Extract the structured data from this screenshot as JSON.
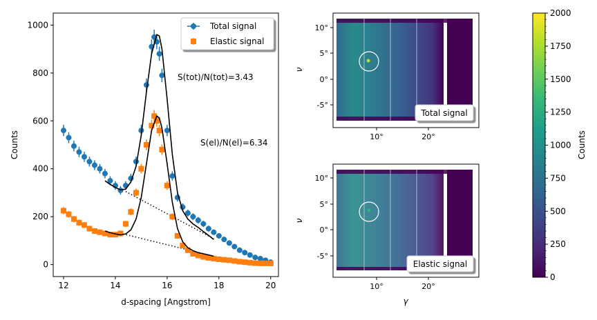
{
  "chart_data": [
    {
      "type": "scatter",
      "xlabel": "d-spacing [Angstrom]",
      "ylabel": "Counts",
      "xlim": [
        11.6,
        20.3
      ],
      "ylim": [
        -50,
        1050
      ],
      "xticks": [
        12,
        14,
        16,
        18,
        20
      ],
      "yticks": [
        0,
        200,
        400,
        600,
        800,
        1000
      ],
      "legend": {
        "position": "top-right",
        "entries": [
          "Total signal",
          "Elastic signal"
        ]
      },
      "annotations": [
        {
          "text": "S(tot)/N(tot)=3.43",
          "x": 17.8,
          "y": 780
        },
        {
          "text": "S(el)/N(el)=6.34",
          "x": 18.6,
          "y": 505
        }
      ],
      "series": [
        {
          "name": "Total signal",
          "color": "#1f77b4",
          "marker": "circle",
          "x": [
            12.0,
            12.2,
            12.4,
            12.6,
            12.8,
            13.0,
            13.2,
            13.4,
            13.6,
            13.8,
            14.0,
            14.2,
            14.4,
            14.6,
            14.8,
            15.0,
            15.2,
            15.4,
            15.5,
            15.6,
            15.7,
            15.8,
            16.0,
            16.2,
            16.4,
            16.6,
            16.8,
            17.0,
            17.2,
            17.4,
            17.6,
            17.8,
            18.0,
            18.2,
            18.4,
            18.6,
            18.8,
            19.0,
            19.2,
            19.4,
            19.6,
            19.8,
            20.0
          ],
          "y": [
            560,
            530,
            495,
            470,
            450,
            430,
            415,
            400,
            380,
            350,
            330,
            310,
            330,
            360,
            430,
            560,
            750,
            910,
            950,
            930,
            880,
            790,
            560,
            370,
            280,
            240,
            215,
            200,
            185,
            170,
            150,
            135,
            120,
            105,
            90,
            75,
            60,
            50,
            40,
            30,
            25,
            18,
            10
          ]
        },
        {
          "name": "Elastic signal",
          "color": "#ff7f0e",
          "marker": "square",
          "x": [
            12.0,
            12.2,
            12.4,
            12.6,
            12.8,
            13.0,
            13.2,
            13.4,
            13.6,
            13.8,
            14.0,
            14.2,
            14.4,
            14.6,
            14.8,
            15.0,
            15.2,
            15.4,
            15.5,
            15.6,
            15.7,
            15.8,
            16.0,
            16.2,
            16.4,
            16.6,
            16.8,
            17.0,
            17.2,
            17.4,
            17.6,
            17.8,
            18.0,
            18.2,
            18.4,
            18.6,
            18.8,
            19.0,
            19.2,
            19.4,
            19.6,
            19.8,
            20.0
          ],
          "y": [
            225,
            210,
            190,
            175,
            165,
            150,
            140,
            135,
            130,
            125,
            125,
            130,
            170,
            220,
            300,
            400,
            500,
            580,
            620,
            600,
            560,
            480,
            330,
            200,
            120,
            80,
            60,
            45,
            38,
            32,
            28,
            25,
            22,
            20,
            18,
            15,
            12,
            10,
            8,
            6,
            5,
            5,
            5
          ]
        }
      ],
      "fit_total": {
        "x": [
          13.6,
          13.8,
          14.0,
          14.2,
          14.4,
          14.6,
          14.8,
          15.0,
          15.2,
          15.4,
          15.6,
          15.7,
          15.8,
          16.0,
          16.2,
          16.4,
          16.6,
          16.8,
          17.0,
          17.2,
          17.4,
          17.6,
          17.8
        ],
        "y": [
          350,
          335,
          322,
          312,
          315,
          345,
          410,
          540,
          720,
          880,
          960,
          955,
          900,
          690,
          460,
          300,
          225,
          190,
          170,
          155,
          138,
          122,
          105
        ]
      },
      "fit_elastic": {
        "x": [
          13.6,
          13.8,
          14.0,
          14.2,
          14.4,
          14.6,
          14.8,
          15.0,
          15.2,
          15.4,
          15.6,
          15.7,
          15.8,
          16.0,
          16.2,
          16.4,
          16.6,
          16.8,
          17.0,
          17.2,
          17.4,
          17.6,
          17.8
        ],
        "y": [
          140,
          133,
          128,
          124,
          128,
          145,
          190,
          280,
          420,
          560,
          620,
          612,
          570,
          420,
          260,
          150,
          95,
          70,
          58,
          50,
          45,
          40,
          35
        ]
      },
      "background_total": {
        "x": [
          14.4,
          17.8
        ],
        "y": [
          305,
          108
        ]
      },
      "background_elastic": {
        "x": [
          14.3,
          17.8
        ],
        "y": [
          128,
          35
        ]
      }
    },
    {
      "type": "heatmap",
      "label": "Total signal",
      "xlabel": "",
      "ylabel": "ν",
      "xticks": [
        "10°",
        "20°"
      ],
      "yticks": [
        "10°",
        "5°",
        "0°",
        "-5°"
      ],
      "circle": {
        "gamma": 8.5,
        "nu": 3.5
      }
    },
    {
      "type": "heatmap",
      "label": "Elastic signal",
      "xlabel": "γ",
      "ylabel": "ν",
      "xticks": [
        "10°",
        "20°"
      ],
      "yticks": [
        "10°",
        "5°",
        "0°",
        "-5°"
      ],
      "circle": {
        "gamma": 8.5,
        "nu": 3.5
      }
    },
    {
      "type": "colorbar",
      "label": "Counts",
      "range": [
        0,
        2000
      ],
      "ticks": [
        "2000",
        "1750",
        "1500",
        "1250",
        "1000",
        "750",
        "500",
        "250",
        "0"
      ],
      "colormap": [
        "#440154",
        "#482878",
        "#3e4989",
        "#31688e",
        "#26828e",
        "#1f9e89",
        "#35b779",
        "#6ece58",
        "#b5de2b",
        "#fde725"
      ]
    }
  ]
}
